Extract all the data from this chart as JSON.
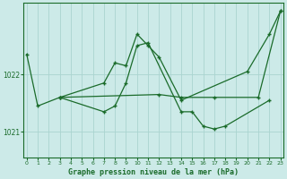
{
  "title": "Graphe pression niveau de la mer (hPa)",
  "bg_color": "#cceae8",
  "grid_color": "#aad4d0",
  "line_color": "#1a6b2a",
  "ylim": [
    1020.55,
    1023.25
  ],
  "yticks": [
    1021.0,
    1022.0
  ],
  "xlim": [
    -0.3,
    23.3
  ],
  "figsize": [
    3.2,
    2.0
  ],
  "dpi": 100,
  "series1_x": [
    0,
    1,
    3,
    7,
    8,
    9,
    10,
    11,
    12,
    14,
    20,
    22,
    23
  ],
  "series1_y": [
    1022.35,
    1021.45,
    1021.6,
    1021.85,
    1022.2,
    1022.15,
    1022.7,
    1022.5,
    1022.3,
    1021.55,
    1022.05,
    1022.7,
    1023.1
  ],
  "series2_x": [
    3,
    7,
    8,
    9,
    10,
    11,
    14,
    15,
    16,
    17,
    18,
    22
  ],
  "series2_y": [
    1021.6,
    1021.35,
    1021.45,
    1021.85,
    1022.5,
    1022.55,
    1021.35,
    1021.35,
    1021.1,
    1021.05,
    1021.1,
    1021.55
  ],
  "series3_x": [
    3,
    12,
    14,
    17,
    21,
    23
  ],
  "series3_y": [
    1021.6,
    1021.65,
    1021.6,
    1021.6,
    1021.6,
    1023.1
  ]
}
